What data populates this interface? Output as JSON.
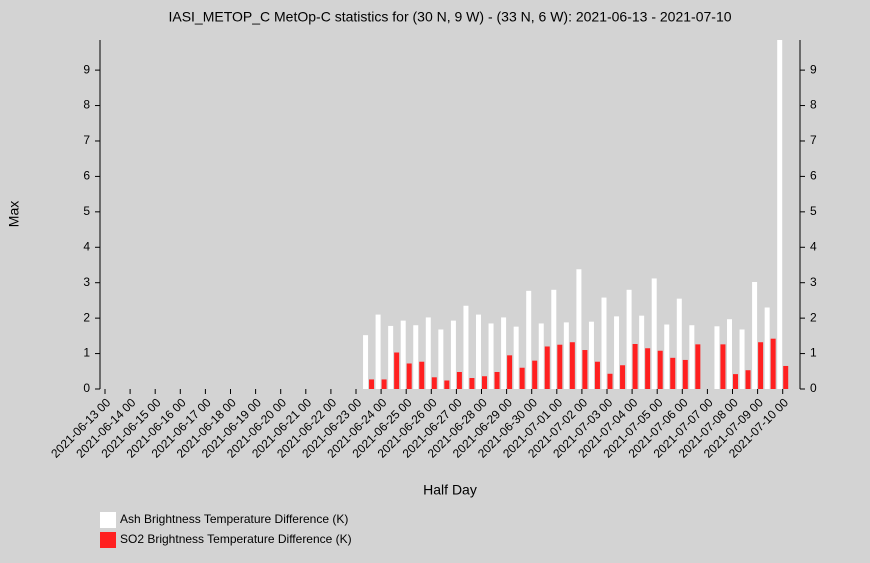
{
  "chart_data": {
    "type": "bar",
    "title": "IASI_METOP_C MetOp-C statistics for (30 N, 9 W) - (33 N, 6 W): 2021-06-13 - 2021-07-10",
    "x_label": "Half Day",
    "y_label": "Max",
    "categories": [
      "2021-06-13 00",
      null,
      "2021-06-14 00",
      null,
      "2021-06-15 00",
      null,
      "2021-06-16 00",
      null,
      "2021-06-17 00",
      null,
      "2021-06-18 00",
      null,
      "2021-06-19 00",
      null,
      "2021-06-20 00",
      null,
      "2021-06-21 00",
      null,
      "2021-06-22 00",
      null,
      "2021-06-23 00",
      null,
      "2021-06-24 00",
      null,
      "2021-06-25 00",
      null,
      "2021-06-26 00",
      null,
      "2021-06-27 00",
      null,
      "2021-06-28 00",
      null,
      "2021-06-29 00",
      null,
      "2021-06-30 00",
      null,
      "2021-07-01 00",
      null,
      "2021-07-02 00",
      null,
      "2021-07-03 00",
      null,
      "2021-07-04 00",
      null,
      "2021-07-05 00",
      null,
      "2021-07-06 00",
      null,
      "2021-07-07 00",
      null,
      "2021-07-08 00",
      null,
      "2021-07-09 00",
      null,
      "2021-07-10 00"
    ],
    "series": [
      {
        "name": "Ash Brightness Temperature Difference (K)",
        "color": "#ffffff",
        "values": [
          null,
          null,
          null,
          null,
          null,
          null,
          null,
          null,
          null,
          null,
          null,
          null,
          null,
          null,
          null,
          null,
          null,
          null,
          null,
          null,
          null,
          1.52,
          2.1,
          1.78,
          1.93,
          1.8,
          2.02,
          1.68,
          1.93,
          2.35,
          2.1,
          1.85,
          2.02,
          1.76,
          2.77,
          1.85,
          2.8,
          1.88,
          3.38,
          1.9,
          2.58,
          2.05,
          2.8,
          2.07,
          3.12,
          1.82,
          2.55,
          1.8,
          null,
          1.77,
          1.97,
          1.68,
          3.02,
          2.3,
          9.85
        ]
      },
      {
        "name": "SO2 Brightness Temperature Difference (K)",
        "color": "#ff2020",
        "values": [
          null,
          null,
          null,
          null,
          null,
          null,
          null,
          null,
          null,
          null,
          null,
          null,
          null,
          null,
          null,
          null,
          null,
          null,
          null,
          null,
          null,
          0.27,
          0.27,
          1.03,
          0.72,
          0.77,
          0.33,
          0.24,
          0.48,
          0.31,
          0.36,
          0.48,
          0.95,
          0.6,
          0.8,
          1.2,
          1.25,
          1.32,
          1.1,
          0.77,
          0.43,
          0.67,
          1.27,
          1.15,
          1.08,
          0.88,
          0.82,
          1.26,
          null,
          1.26,
          0.42,
          0.53,
          1.32,
          1.42,
          0.65
        ]
      }
    ],
    "ylim": [
      0,
      9.85
    ],
    "yticks": [
      0,
      1,
      2,
      3,
      4,
      5,
      6,
      7,
      8,
      9
    ]
  }
}
